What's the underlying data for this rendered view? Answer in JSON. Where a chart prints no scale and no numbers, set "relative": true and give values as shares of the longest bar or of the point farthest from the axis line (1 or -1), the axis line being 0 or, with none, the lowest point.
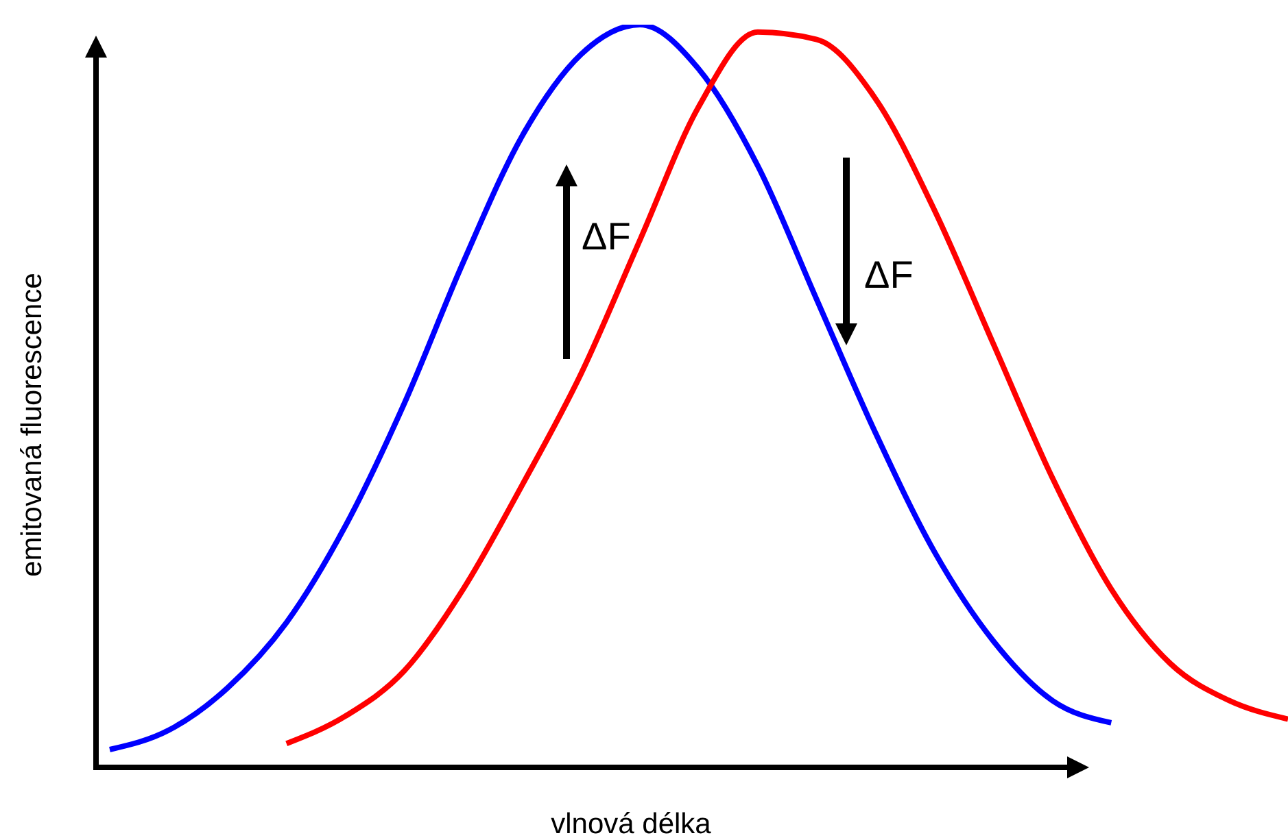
{
  "chart_data": {
    "type": "line",
    "relative": true,
    "xlabel": "vlnová délka",
    "ylabel": "emitovaná fluorescence",
    "annotations": [
      "ΔF",
      "ΔF"
    ],
    "categories": [
      null,
      null,
      null,
      null,
      null,
      null,
      null,
      null,
      null,
      null,
      null,
      null,
      null,
      null,
      null,
      null,
      null,
      null,
      null,
      null,
      null
    ],
    "series": [
      {
        "color": "#0000ff",
        "values": [
          0.024,
          0.05,
          0.107,
          0.195,
          0.325,
          0.49,
          0.68,
          0.85,
          0.96,
          1.0,
          0.94,
          0.81,
          0.63,
          0.45,
          0.29,
          0.17,
          0.09,
          0.06,
          null,
          null,
          null
        ]
      },
      {
        "color": "#ff0000",
        "values": [
          null,
          null,
          null,
          0.032,
          0.069,
          0.13,
          0.24,
          0.38,
          0.53,
          0.71,
          0.89,
          0.99,
          0.98,
          0.9,
          0.75,
          0.57,
          0.39,
          0.24,
          0.14,
          0.09,
          0.065
        ]
      }
    ]
  }
}
